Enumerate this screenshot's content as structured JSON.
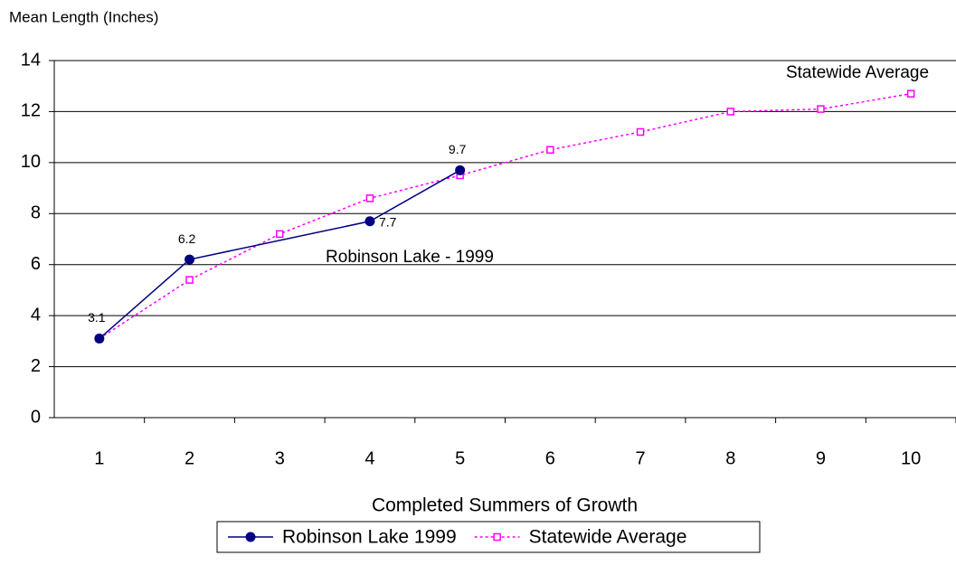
{
  "chart_data": {
    "type": "line",
    "y_label": "Mean Length (Inches)",
    "x_label": "Completed Summers of Growth",
    "annotations": [
      "Robinson Lake - 1999",
      "Statewide Average"
    ],
    "xlim": [
      0.5,
      10.5
    ],
    "xticks": [
      1,
      2,
      3,
      4,
      5,
      6,
      7,
      8,
      9,
      10
    ],
    "ylim": [
      0,
      14
    ],
    "yticks": [
      0,
      2,
      4,
      6,
      8,
      10,
      12,
      14
    ],
    "grid": true,
    "series": [
      {
        "name": "Robinson Lake 1999",
        "color": "#000080",
        "marker": "circle",
        "dash": "solid",
        "data_labels": true,
        "x": [
          1,
          2,
          4,
          5
        ],
        "values": [
          3.1,
          6.2,
          7.7,
          9.7
        ]
      },
      {
        "name": "Statewide Average",
        "color": "#ff00ff",
        "marker": "square",
        "dash": "dotted",
        "data_labels": false,
        "x": [
          1,
          2,
          3,
          4,
          5,
          6,
          7,
          8,
          9,
          10
        ],
        "values": [
          3.1,
          5.4,
          7.2,
          8.6,
          9.5,
          10.5,
          11.2,
          12.0,
          12.1,
          12.7
        ]
      }
    ]
  }
}
